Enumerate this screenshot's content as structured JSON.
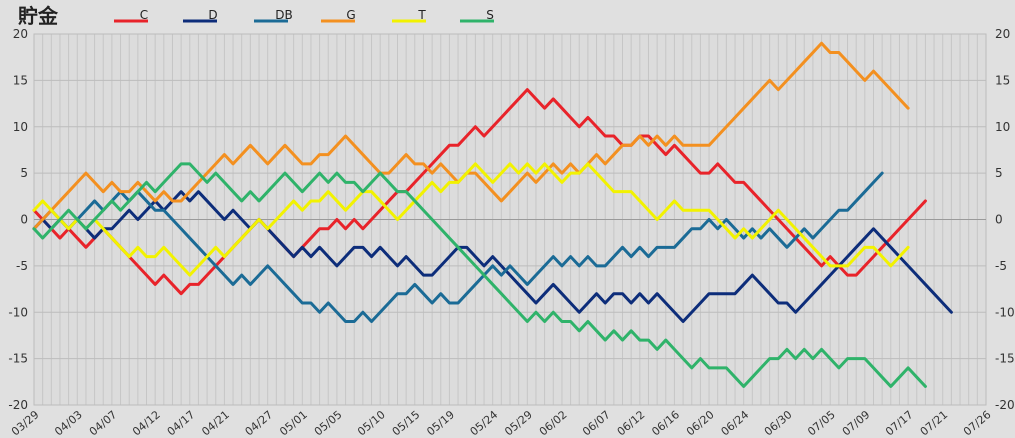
{
  "chart_data": {
    "type": "line",
    "title": "貯金",
    "xlabel": "",
    "ylabel": "",
    "ylim": [
      -20,
      20
    ],
    "yticks": [
      -20,
      -15,
      -10,
      -5,
      0,
      5,
      10,
      15,
      20
    ],
    "grid": true,
    "legend_position": "top",
    "x_tick_labels": [
      "03/29",
      "04/03",
      "04/07",
      "04/12",
      "04/17",
      "04/21",
      "04/27",
      "05/01",
      "05/05",
      "05/10",
      "05/15",
      "05/19",
      "05/24",
      "05/29",
      "06/02",
      "06/07",
      "06/12",
      "06/16",
      "06/20",
      "06/24",
      "06/30",
      "07/05",
      "07/09",
      "07/17",
      "07/21",
      "07/26"
    ],
    "x_tick_games": [
      0,
      5,
      9,
      14,
      18,
      22,
      27,
      31,
      35,
      40,
      44,
      48,
      53,
      57,
      61,
      66,
      70,
      74,
      78,
      82,
      87,
      92,
      96,
      101,
      105,
      110
    ],
    "num_games": 110,
    "series": [
      {
        "name": "C",
        "color": "#e8232a",
        "values": [
          1,
          0,
          -1,
          -2,
          -1,
          -2,
          -3,
          -2,
          -1,
          -2,
          -3,
          -4,
          -5,
          -6,
          -7,
          -6,
          -7,
          -8,
          -7,
          -7,
          -6,
          -5,
          -4,
          -3,
          -2,
          -1,
          0,
          -1,
          -2,
          -3,
          -4,
          -3,
          -2,
          -1,
          -1,
          0,
          -1,
          0,
          -1,
          0,
          1,
          2,
          3,
          3,
          4,
          5,
          6,
          7,
          8,
          8,
          9,
          10,
          9,
          10,
          11,
          12,
          13,
          14,
          13,
          12,
          13,
          12,
          11,
          10,
          11,
          10,
          9,
          9,
          8,
          8,
          9,
          9,
          8,
          7,
          8,
          7,
          6,
          5,
          5,
          6,
          5,
          4,
          4,
          3,
          2,
          1,
          0,
          -1,
          -2,
          -3,
          -4,
          -5,
          -4,
          -5,
          -6,
          -6,
          -5,
          -4,
          -3,
          -2,
          -1,
          0,
          1,
          2
        ]
      },
      {
        "name": "D",
        "color": "#0d2d7a",
        "values": [
          -1,
          0,
          -1,
          0,
          -1,
          0,
          -1,
          -2,
          -1,
          -1,
          0,
          1,
          0,
          1,
          2,
          1,
          2,
          3,
          2,
          3,
          2,
          1,
          0,
          1,
          0,
          -1,
          0,
          -1,
          -2,
          -3,
          -4,
          -3,
          -4,
          -3,
          -4,
          -5,
          -4,
          -3,
          -3,
          -4,
          -3,
          -4,
          -5,
          -4,
          -5,
          -6,
          -6,
          -5,
          -4,
          -3,
          -3,
          -4,
          -5,
          -4,
          -5,
          -6,
          -7,
          -8,
          -9,
          -8,
          -7,
          -8,
          -9,
          -10,
          -9,
          -8,
          -9,
          -8,
          -8,
          -9,
          -8,
          -9,
          -8,
          -9,
          -10,
          -11,
          -10,
          -9,
          -8,
          -8,
          -8,
          -8,
          -7,
          -6,
          -7,
          -8,
          -9,
          -9,
          -10,
          -9,
          -8,
          -7,
          -6,
          -5,
          -4,
          -3,
          -2,
          -1,
          -2,
          -3,
          -4,
          -5,
          -6,
          -7,
          -8,
          -9,
          -10
        ]
      },
      {
        "name": "DB",
        "color": "#1b6b96",
        "values": [
          -1,
          0,
          1,
          0,
          -1,
          0,
          1,
          2,
          1,
          2,
          3,
          2,
          3,
          2,
          1,
          1,
          0,
          -1,
          -2,
          -3,
          -4,
          -5,
          -6,
          -7,
          -6,
          -7,
          -6,
          -5,
          -6,
          -7,
          -8,
          -9,
          -9,
          -10,
          -9,
          -10,
          -11,
          -11,
          -10,
          -11,
          -10,
          -9,
          -8,
          -8,
          -7,
          -8,
          -9,
          -8,
          -9,
          -9,
          -8,
          -7,
          -6,
          -5,
          -6,
          -5,
          -6,
          -7,
          -6,
          -5,
          -4,
          -5,
          -4,
          -5,
          -4,
          -5,
          -5,
          -4,
          -3,
          -4,
          -3,
          -4,
          -3,
          -3,
          -3,
          -2,
          -1,
          -1,
          0,
          -1,
          0,
          -1,
          -2,
          -1,
          -2,
          -1,
          -2,
          -3,
          -2,
          -1,
          -2,
          -1,
          0,
          1,
          1,
          2,
          3,
          4,
          5
        ]
      },
      {
        "name": "G",
        "color": "#f39020",
        "values": [
          -1,
          0,
          1,
          2,
          3,
          4,
          5,
          4,
          3,
          4,
          3,
          3,
          4,
          3,
          2,
          3,
          2,
          2,
          3,
          4,
          5,
          6,
          7,
          6,
          7,
          8,
          7,
          6,
          7,
          8,
          7,
          6,
          6,
          7,
          7,
          8,
          9,
          8,
          7,
          6,
          5,
          5,
          6,
          7,
          6,
          6,
          5,
          6,
          5,
          4,
          5,
          5,
          4,
          3,
          2,
          3,
          4,
          5,
          4,
          5,
          6,
          5,
          6,
          5,
          6,
          7,
          6,
          7,
          8,
          8,
          9,
          8,
          9,
          8,
          9,
          8,
          8,
          8,
          8,
          9,
          10,
          11,
          12,
          13,
          14,
          15,
          14,
          15,
          16,
          17,
          18,
          19,
          18,
          18,
          17,
          16,
          15,
          16,
          15,
          14,
          13,
          12
        ]
      },
      {
        "name": "T",
        "color": "#f2f200",
        "values": [
          1,
          2,
          1,
          0,
          -1,
          0,
          -1,
          0,
          -1,
          -2,
          -3,
          -4,
          -3,
          -4,
          -4,
          -3,
          -4,
          -5,
          -6,
          -5,
          -4,
          -3,
          -4,
          -3,
          -2,
          -1,
          0,
          -1,
          0,
          1,
          2,
          1,
          2,
          2,
          3,
          2,
          1,
          2,
          3,
          3,
          2,
          1,
          0,
          1,
          2,
          3,
          4,
          3,
          4,
          4,
          5,
          6,
          5,
          4,
          5,
          6,
          5,
          6,
          5,
          6,
          5,
          4,
          5,
          5,
          6,
          5,
          4,
          3,
          3,
          3,
          2,
          1,
          0,
          1,
          2,
          1,
          1,
          1,
          1,
          0,
          -1,
          -2,
          -1,
          -2,
          -1,
          0,
          1,
          0,
          -1,
          -2,
          -3,
          -4,
          -5,
          -5,
          -5,
          -4,
          -3,
          -3,
          -4,
          -5,
          -4,
          -3
        ]
      },
      {
        "name": "S",
        "color": "#2fb36a",
        "values": [
          -1,
          -2,
          -1,
          0,
          1,
          0,
          -1,
          0,
          1,
          2,
          1,
          2,
          3,
          4,
          3,
          4,
          5,
          6,
          6,
          5,
          4,
          5,
          4,
          3,
          2,
          3,
          2,
          3,
          4,
          5,
          4,
          3,
          4,
          5,
          4,
          5,
          4,
          4,
          3,
          4,
          5,
          4,
          3,
          3,
          2,
          1,
          0,
          -1,
          -2,
          -3,
          -4,
          -5,
          -6,
          -7,
          -8,
          -9,
          -10,
          -11,
          -10,
          -11,
          -10,
          -11,
          -11,
          -12,
          -11,
          -12,
          -13,
          -12,
          -13,
          -12,
          -13,
          -13,
          -14,
          -13,
          -14,
          -15,
          -16,
          -15,
          -16,
          -16,
          -16,
          -17,
          -18,
          -17,
          -16,
          -15,
          -15,
          -14,
          -15,
          -14,
          -15,
          -14,
          -15,
          -16,
          -15,
          -15,
          -15,
          -16,
          -17,
          -18,
          -17,
          -16,
          -17,
          -18
        ]
      }
    ]
  }
}
